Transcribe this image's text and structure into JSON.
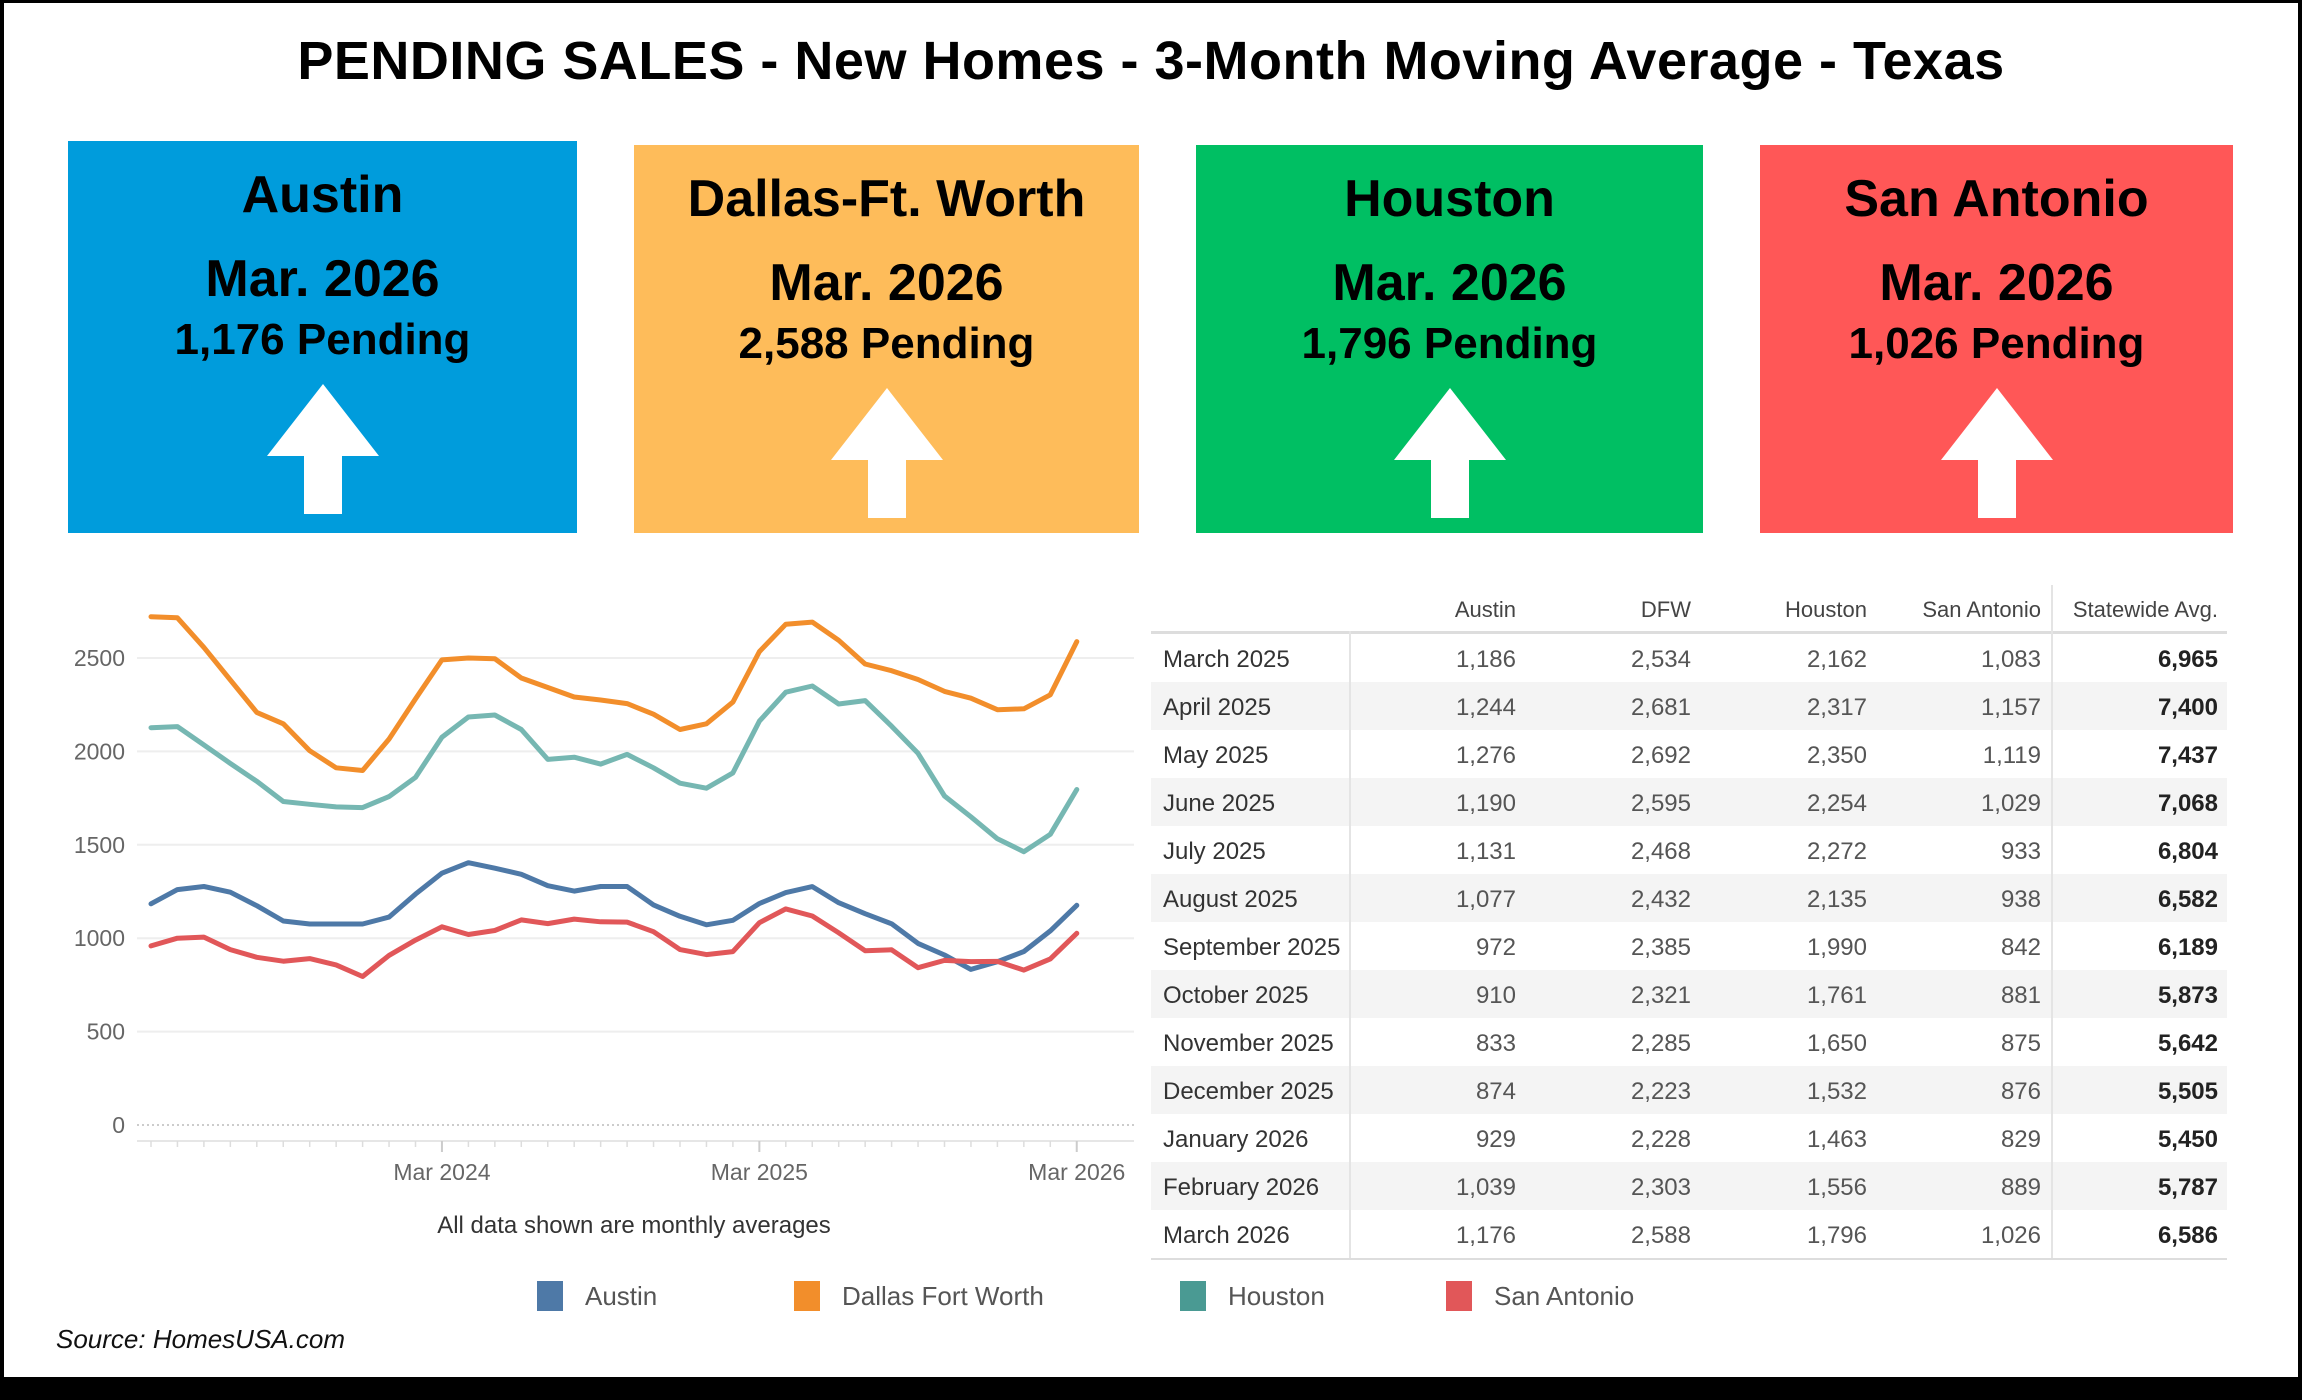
{
  "title": "PENDING SALES - New Homes - 3-Month Moving Average - Texas",
  "cards": [
    {
      "city": "Austin",
      "month": "Mar. 2026",
      "pending": "1,176 Pending",
      "color": "#009cdc",
      "trend": "arrow-up"
    },
    {
      "city": "Dallas-Ft. Worth",
      "month": "Mar. 2026",
      "pending": "2,588 Pending",
      "color": "#febc5a",
      "trend": "arrow-up"
    },
    {
      "city": "Houston",
      "month": "Mar. 2026",
      "pending": "1,796 Pending",
      "color": "#00bf63",
      "trend": "arrow-up"
    },
    {
      "city": "San Antonio",
      "month": "Mar. 2026",
      "pending": "1,026 Pending",
      "color": "#ff5757",
      "trend": "arrow-up"
    }
  ],
  "chart_data": {
    "type": "line",
    "x_start": "Apr 2023",
    "x_ticks": [
      "Mar 2024",
      "Mar 2025",
      "Mar 2026"
    ],
    "y_ticks": [
      0,
      500,
      1000,
      1500,
      2000,
      2500
    ],
    "ylim": [
      0,
      2800
    ],
    "grid": true,
    "legend": "bottom",
    "caption": "All data shown are monthly averages",
    "series": [
      {
        "name": "Austin",
        "color": "#4e79a7",
        "values": [
          1184,
          1260,
          1277,
          1246,
          1174,
          1092,
          1076,
          1076,
          1076,
          1113,
          1236,
          1348,
          1404,
          1375,
          1342,
          1281,
          1252,
          1277,
          1277,
          1178,
          1117,
          1072,
          1096,
          1186,
          1244,
          1276,
          1190,
          1131,
          1077,
          972,
          910,
          833,
          874,
          929,
          1039,
          1176
        ]
      },
      {
        "name": "Dallas Fort Worth",
        "color": "#f28e2b",
        "values": [
          2721,
          2715,
          2557,
          2383,
          2209,
          2148,
          2004,
          1912,
          1898,
          2066,
          2281,
          2490,
          2500,
          2496,
          2393,
          2342,
          2291,
          2275,
          2256,
          2199,
          2117,
          2148,
          2264,
          2534,
          2681,
          2692,
          2595,
          2468,
          2432,
          2385,
          2321,
          2285,
          2223,
          2228,
          2303,
          2588
        ]
      },
      {
        "name": "Houston",
        "color": "#76b7b2",
        "legend_color": "#4a9a93",
        "values": [
          2127,
          2133,
          2035,
          1936,
          1840,
          1732,
          1717,
          1703,
          1699,
          1758,
          1861,
          2076,
          2184,
          2195,
          2117,
          1957,
          1969,
          1932,
          1984,
          1912,
          1830,
          1803,
          1885,
          2162,
          2317,
          2350,
          2254,
          2272,
          2135,
          1990,
          1761,
          1650,
          1532,
          1463,
          1556,
          1796
        ]
      },
      {
        "name": "San Antonio",
        "color": "#e15759",
        "values": [
          959,
          1000,
          1006,
          939,
          898,
          877,
          891,
          857,
          795,
          908,
          990,
          1061,
          1020,
          1041,
          1098,
          1078,
          1102,
          1088,
          1086,
          1035,
          939,
          912,
          928,
          1083,
          1157,
          1119,
          1029,
          933,
          938,
          842,
          881,
          875,
          876,
          829,
          889,
          1026
        ]
      }
    ]
  },
  "table": {
    "columns": [
      "Austin",
      "DFW",
      "Houston",
      "San Antonio",
      "Statewide Avg."
    ],
    "rows": [
      {
        "label": "March 2025",
        "values": [
          "1,186",
          "2,534",
          "2,162",
          "1,083",
          "6,965"
        ]
      },
      {
        "label": "April 2025",
        "values": [
          "1,244",
          "2,681",
          "2,317",
          "1,157",
          "7,400"
        ]
      },
      {
        "label": "May 2025",
        "values": [
          "1,276",
          "2,692",
          "2,350",
          "1,119",
          "7,437"
        ]
      },
      {
        "label": "June 2025",
        "values": [
          "1,190",
          "2,595",
          "2,254",
          "1,029",
          "7,068"
        ]
      },
      {
        "label": "July 2025",
        "values": [
          "1,131",
          "2,468",
          "2,272",
          "933",
          "6,804"
        ]
      },
      {
        "label": "August 2025",
        "values": [
          "1,077",
          "2,432",
          "2,135",
          "938",
          "6,582"
        ]
      },
      {
        "label": "September 2025",
        "values": [
          "972",
          "2,385",
          "1,990",
          "842",
          "6,189"
        ]
      },
      {
        "label": "October 2025",
        "values": [
          "910",
          "2,321",
          "1,761",
          "881",
          "5,873"
        ]
      },
      {
        "label": "November 2025",
        "values": [
          "833",
          "2,285",
          "1,650",
          "875",
          "5,642"
        ]
      },
      {
        "label": "December 2025",
        "values": [
          "874",
          "2,223",
          "1,532",
          "876",
          "5,505"
        ]
      },
      {
        "label": "January 2026",
        "values": [
          "929",
          "2,228",
          "1,463",
          "829",
          "5,450"
        ]
      },
      {
        "label": "February 2026",
        "values": [
          "1,039",
          "2,303",
          "1,556",
          "889",
          "5,787"
        ]
      },
      {
        "label": "March 2026",
        "values": [
          "1,176",
          "2,588",
          "1,796",
          "1,026",
          "6,586"
        ]
      }
    ]
  },
  "source": "Source: HomesUSA.com"
}
